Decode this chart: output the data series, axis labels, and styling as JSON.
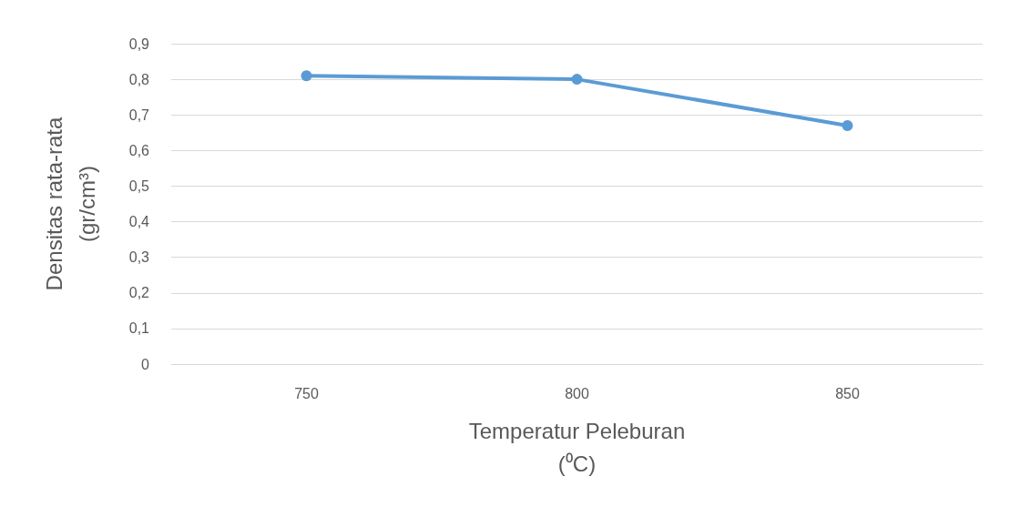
{
  "chart_data": {
    "type": "line",
    "xlabel": "Temperatur Peleburan\n(⁰C)",
    "ylabel": "Densitas rata-rata\n(gr/cm³)",
    "categories": [
      "750",
      "800",
      "850"
    ],
    "series": [
      {
        "color": "#5b9bd5",
        "values": [
          0.81,
          0.8,
          0.67
        ]
      }
    ],
    "ylim": [
      0,
      0.9
    ],
    "yticks": [
      {
        "value": 0,
        "label": "0"
      },
      {
        "value": 0.1,
        "label": "0,1"
      },
      {
        "value": 0.2,
        "label": "0,2"
      },
      {
        "value": 0.3,
        "label": "0,3"
      },
      {
        "value": 0.4,
        "label": "0,4"
      },
      {
        "value": 0.5,
        "label": "0,5"
      },
      {
        "value": 0.6,
        "label": "0,6"
      },
      {
        "value": 0.7,
        "label": "0,7"
      },
      {
        "value": 0.8,
        "label": "0,8"
      },
      {
        "value": 0.9,
        "label": "0,9"
      }
    ],
    "grid": "y",
    "marker": "circle",
    "line_style": "solid"
  }
}
